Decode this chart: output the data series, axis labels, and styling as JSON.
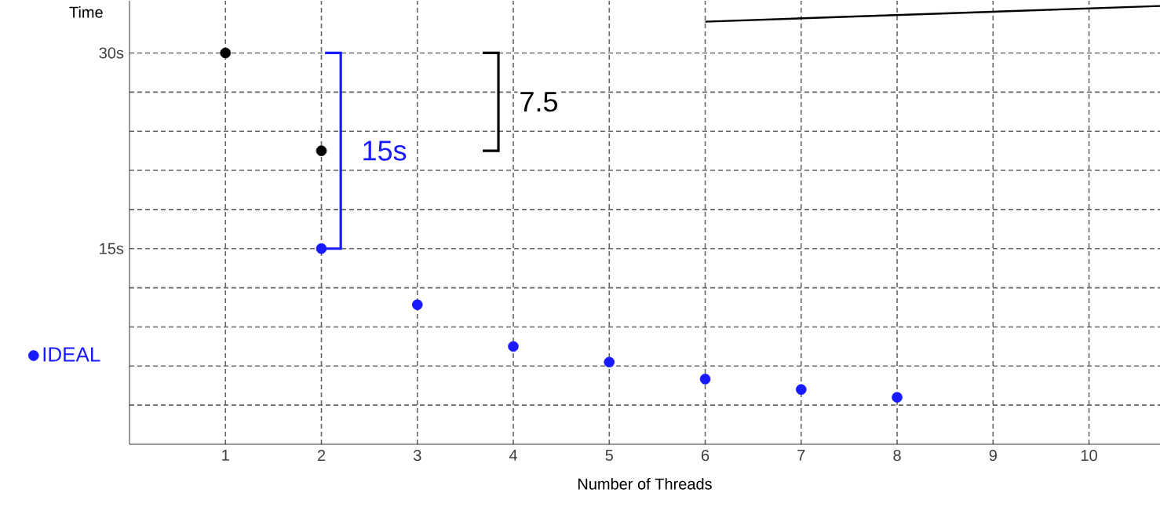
{
  "chart_data": {
    "type": "scatter",
    "xlabel": "Number of Threads",
    "ylabel": "Time",
    "xlim": [
      0,
      10.74
    ],
    "ylim": [
      0,
      34
    ],
    "xticks": [
      1,
      2,
      3,
      4,
      5,
      6,
      7,
      8,
      9,
      10
    ],
    "yticks": [
      {
        "value": 3,
        "label": null
      },
      {
        "value": 6,
        "label": null
      },
      {
        "value": 9,
        "label": null
      },
      {
        "value": 12,
        "label": null
      },
      {
        "value": 15,
        "label": "15s"
      },
      {
        "value": 18,
        "label": null
      },
      {
        "value": 21,
        "label": null
      },
      {
        "value": 24,
        "label": null
      },
      {
        "value": 27,
        "label": null
      },
      {
        "value": 30,
        "label": "30s"
      }
    ],
    "grid": true,
    "legend": "left",
    "marker": "circle",
    "series": [
      {
        "color": "#000000",
        "x": [
          1,
          2
        ],
        "values": [
          30,
          22.5
        ]
      },
      {
        "name": "IDEAL",
        "color": "#1a1aff",
        "x": [
          2,
          3,
          4,
          5,
          6,
          7,
          8
        ],
        "values": [
          15,
          10.7,
          7.5,
          6.3,
          5.0,
          4.2,
          3.6
        ]
      },
      {
        "type": "line",
        "marker": "none",
        "color": "#000000",
        "x": [
          6,
          10.74
        ],
        "values": [
          32.4,
          33.6
        ]
      }
    ],
    "annotations": [
      "15s",
      "7.5"
    ]
  }
}
